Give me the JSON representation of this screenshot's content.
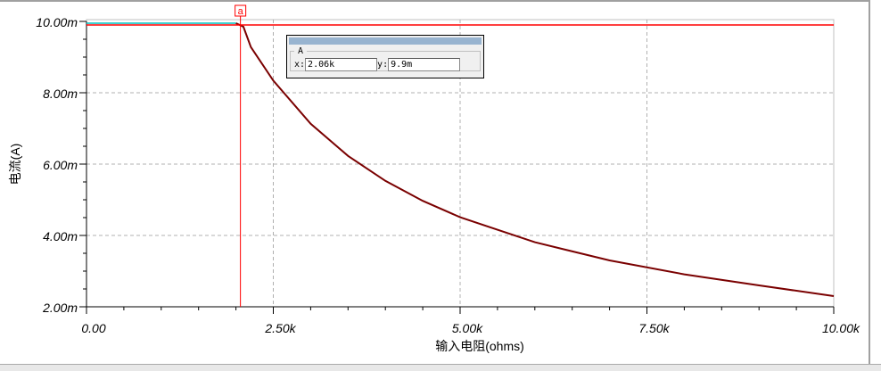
{
  "chart_data": {
    "type": "line",
    "xlabel": "输入电阻(ohms)",
    "ylabel": "电流(A)",
    "xlim": [
      0,
      10000
    ],
    "ylim": [
      2,
      10
    ],
    "x_ticks": [
      {
        "v": 0,
        "label": "0.00"
      },
      {
        "v": 2500,
        "label": "2.50k"
      },
      {
        "v": 5000,
        "label": "5.00k"
      },
      {
        "v": 7500,
        "label": "7.50k"
      },
      {
        "v": 10000,
        "label": "10.00k"
      }
    ],
    "y_ticks": [
      {
        "v": 2,
        "label": "2.00m"
      },
      {
        "v": 4,
        "label": "4.00m"
      },
      {
        "v": 6,
        "label": "6.00m"
      },
      {
        "v": 8,
        "label": "8.00m"
      },
      {
        "v": 10,
        "label": "10.00m"
      }
    ],
    "grid": true,
    "series": [
      {
        "color": "#7a0000",
        "x": [
          0,
          2000,
          2100,
          2200,
          2500,
          3000,
          3500,
          4000,
          4500,
          5000,
          6000,
          7000,
          8000,
          9000,
          10000
        ],
        "y": [
          9.95,
          9.95,
          9.85,
          9.28,
          8.34,
          7.13,
          6.23,
          5.53,
          4.97,
          4.51,
          3.81,
          3.3,
          2.91,
          2.6,
          2.3
        ]
      }
    ],
    "cursor": {
      "label": "a",
      "x": 2060,
      "y": 9.9,
      "color": "#ff0000"
    }
  },
  "cursor_box": {
    "title": "A",
    "x_label": "x:",
    "x_value": "2.06k",
    "y_label": "y:",
    "y_value": "9.9m"
  }
}
